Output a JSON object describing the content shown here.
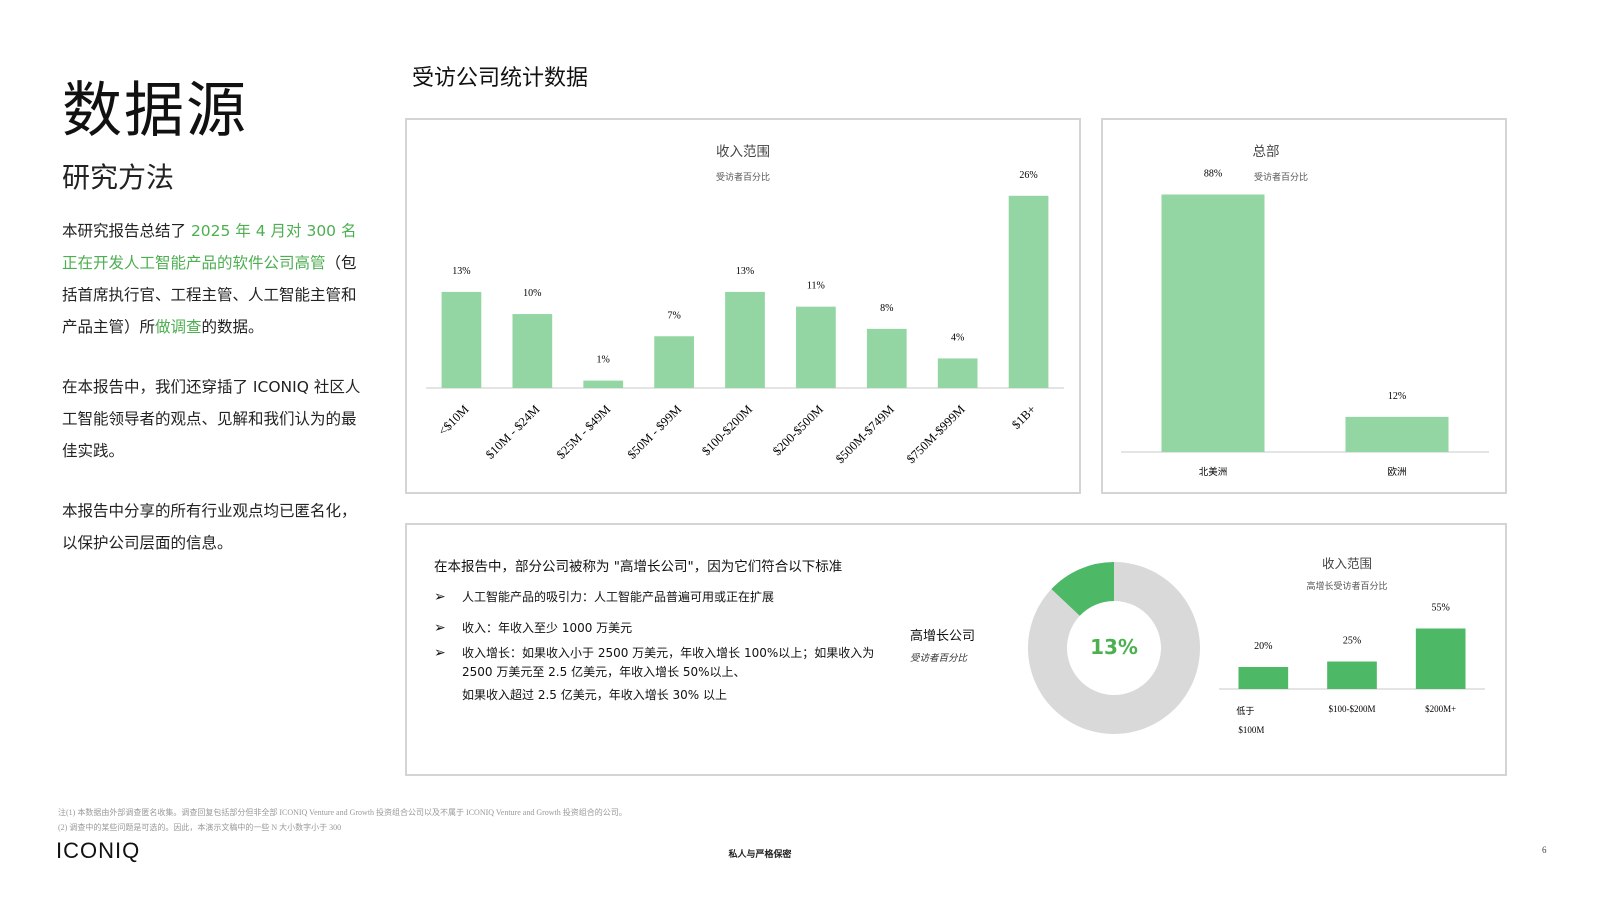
{
  "left": {
    "title": "数据源",
    "subtitle": "研究方法",
    "p1_a": "本研究报告总结了 ",
    "p1_b": "2025 年 4 月对 300 名正在开发人工智能产品的软件公司高管",
    "p1_c": "（包括首席执行官、工程主管、人工智能主管和产品主管）所",
    "p1_d": "做调查",
    "p1_e": "的数据。",
    "p2": "在本报告中，我们还穿插了 ICONIQ 社区人工智能领导者的观点、见解和我们认为的最佳实践。",
    "p3": "本报告中分享的所有行业观点均已匿名化，以保护公司层面的信息。"
  },
  "section_title": "受访公司统计数据",
  "criteria": {
    "title": "在本报告中，部分公司被称为 \"高增长公司\"，因为它们符合以下标准",
    "items": [
      "人工智能产品的吸引力：人工智能产品普遍可用或正在扩展",
      "收入：年收入至少 1000 万美元",
      "收入增长：如果收入小于 2500 万美元，年收入增长 100%以上；如果收入为 2500 万美元至 2.5 亿美元，年收入增长 50%以上、"
    ],
    "extra_line": "如果收入超过 2.5 亿美元，年收入增长 30% 以上"
  },
  "donut": {
    "label": "高增长公司",
    "sublabel": "受访者百分比",
    "center_text": "13%"
  },
  "colors": {
    "bar_light": "#93d5a3",
    "bar_dark": "#4db866",
    "donut_gray": "#d9d9d9",
    "accent_text": "#4caf50"
  },
  "chart_data": [
    {
      "type": "bar",
      "title": "收入范围",
      "subtitle": "受访者百分比",
      "categories": [
        "<$10M",
        "$10M - $24M",
        "$25M - $49M",
        "$50M - $99M",
        "$100-$200M",
        "$200-$500M",
        "$500M-$749M",
        "$750M-$999M",
        "$1B+"
      ],
      "values": [
        13,
        10,
        1,
        7,
        13,
        11,
        8,
        4,
        26
      ],
      "value_labels": [
        "13%",
        "10%",
        "1%",
        "7%",
        "13%",
        "11%",
        "8%",
        "4%",
        "26%"
      ],
      "ylim": [
        0,
        28
      ]
    },
    {
      "type": "bar",
      "title": "总部",
      "subtitle": "受访者百分比",
      "categories": [
        "北美洲",
        "欧洲"
      ],
      "values": [
        88,
        12
      ],
      "value_labels": [
        "88%",
        "12%"
      ],
      "ylim": [
        0,
        95
      ]
    },
    {
      "type": "pie",
      "title": "高增长公司",
      "subtitle": "受访者百分比",
      "values": [
        13,
        87
      ]
    },
    {
      "type": "bar",
      "title": "收入范围",
      "subtitle": "高增长受访者百分比",
      "categories": [
        "低于 $100M",
        "$100-$200M",
        "$200M+"
      ],
      "values": [
        20,
        25,
        55
      ],
      "value_labels": [
        "20%",
        "25%",
        "55%"
      ],
      "ylim": [
        0,
        60
      ]
    }
  ],
  "footer": {
    "note1": "注(1) 本数据由外部调查匿名收集。调查回复包括部分但非全部 ICONIQ Venture and Growth 投资组合公司以及不属于 ICONIQ Venture and Growth 投资组合的公司。",
    "note2": "(2) 调查中的某些问题是可选的。因此，本演示文稿中的一些 N 大小数字小于 300",
    "logo": "ICONIQ",
    "confidential": "私人与严格保密",
    "page": "6"
  }
}
